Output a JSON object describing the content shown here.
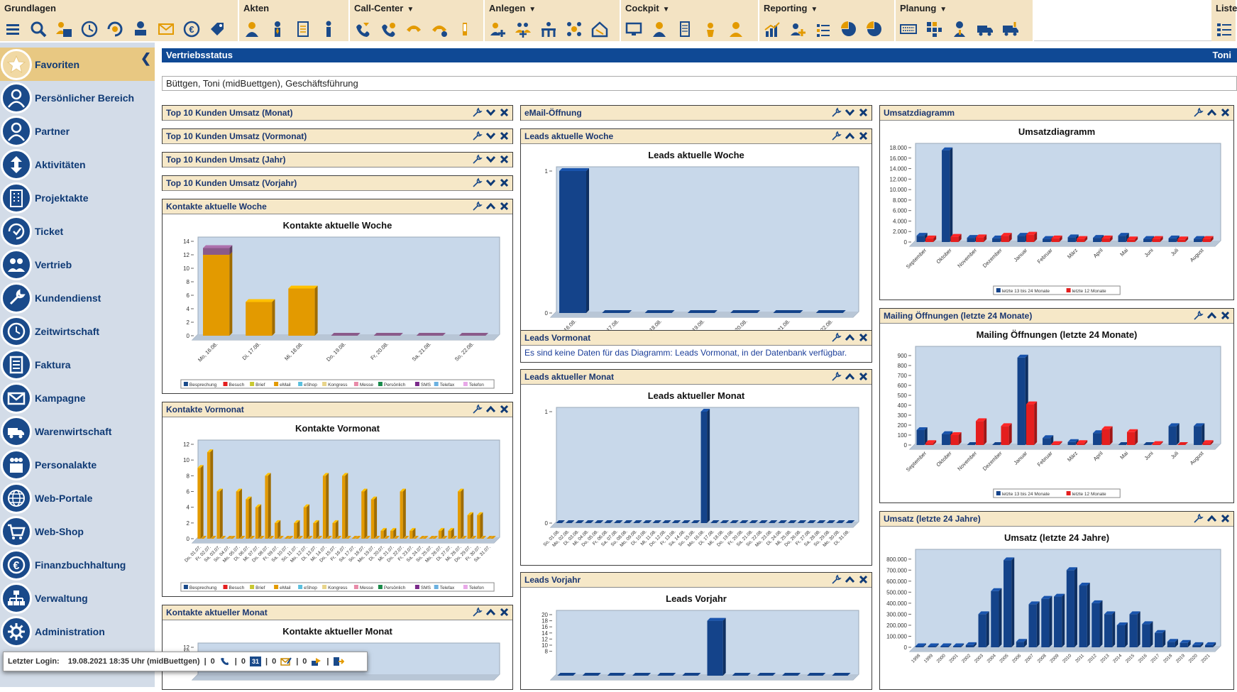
{
  "toolbar": {
    "groups": [
      {
        "title": "Grundlagen",
        "has_menu": false,
        "icons": [
          "menu-icon",
          "search-icon",
          "calendar-user-icon",
          "clock-icon",
          "refresh-icon",
          "user-desk-icon",
          "mail-icon",
          "euro-icon",
          "tag-icon"
        ]
      },
      {
        "title": "Akten",
        "has_menu": false,
        "icons": [
          "person-icon",
          "person-tie-icon",
          "document-icon",
          "person-standing-icon"
        ]
      },
      {
        "title": "Call-Center",
        "has_menu": true,
        "icons": [
          "phone-in-icon",
          "phone-out-icon",
          "phone-ring-icon",
          "phone-callback-icon",
          "phone-hand-icon"
        ]
      },
      {
        "title": "Anlegen",
        "has_menu": true,
        "icons": [
          "add-person-icon",
          "add-group-icon",
          "add-org-icon",
          "add-network-icon",
          "add-house-icon"
        ]
      },
      {
        "title": "Cockpit",
        "has_menu": true,
        "icons": [
          "monitor-icon",
          "person-cockpit-icon",
          "document-cockpit-icon",
          "hand-money-icon",
          "person-gold-icon"
        ]
      },
      {
        "title": "Reporting",
        "has_menu": true,
        "icons": [
          "bar-report-icon",
          "add-report-icon",
          "list-report-icon",
          "pie-add-icon",
          "pie-report-icon"
        ]
      },
      {
        "title": "Planung",
        "has_menu": true,
        "icons": [
          "keyboard-icon",
          "grid-icon",
          "person-alert-icon",
          "truck-icon",
          "truck-out-icon"
        ]
      },
      {
        "title": "Liste",
        "has_menu": false,
        "icons": [
          "list-icon"
        ]
      }
    ]
  },
  "sidebar": {
    "items": [
      {
        "label": "Favoriten",
        "icon": "star-icon",
        "active": true
      },
      {
        "label": "Persönlicher Bereich",
        "icon": "person-icon",
        "active": false
      },
      {
        "label": "Partner",
        "icon": "person-icon",
        "active": false
      },
      {
        "label": "Aktivitäten",
        "icon": "arrows-icon",
        "active": false
      },
      {
        "label": "Projektakte",
        "icon": "building-icon",
        "active": false
      },
      {
        "label": "Ticket",
        "icon": "ticket-icon",
        "active": false
      },
      {
        "label": "Vertrieb",
        "icon": "group-icon",
        "active": false
      },
      {
        "label": "Kundendienst",
        "icon": "wrench-icon",
        "active": false
      },
      {
        "label": "Zeitwirtschaft",
        "icon": "clock-icon",
        "active": false
      },
      {
        "label": "Faktura",
        "icon": "invoice-icon",
        "active": false
      },
      {
        "label": "Kampagne",
        "icon": "mail-icon",
        "active": false
      },
      {
        "label": "Warenwirtschaft",
        "icon": "truck-icon",
        "active": false
      },
      {
        "label": "Personalakte",
        "icon": "people-icon",
        "active": false
      },
      {
        "label": "Web-Portale",
        "icon": "globe-icon",
        "active": false
      },
      {
        "label": "Web-Shop",
        "icon": "cart-icon",
        "active": false
      },
      {
        "label": "Finanzbuchhaltung",
        "icon": "euro-icon",
        "active": false
      },
      {
        "label": "Verwaltung",
        "icon": "org-icon",
        "active": false
      },
      {
        "label": "Administration",
        "icon": "gear-icon",
        "active": false
      }
    ]
  },
  "page": {
    "title": "Vertriebsstatus",
    "user": "Toni",
    "user_line": "Büttgen, Toni (midBuettgen), Geschäftsführung"
  },
  "panels": {
    "top10_monat": {
      "title": "Top 10 Kunden Umsatz (Monat)",
      "collapsed": true
    },
    "top10_vormonat": {
      "title": "Top 10 Kunden Umsatz (Vormonat)",
      "collapsed": true
    },
    "top10_jahr": {
      "title": "Top 10 Kunden Umsatz (Jahr)",
      "collapsed": true
    },
    "top10_vorjahr": {
      "title": "Top 10 Kunden Umsatz (Vorjahr)",
      "collapsed": true
    },
    "kontakte_woche": {
      "title": "Kontakte aktuelle Woche",
      "collapsed": false
    },
    "kontakte_vormonat": {
      "title": "Kontakte Vormonat",
      "collapsed": false
    },
    "kontakte_monat": {
      "title": "Kontakte aktueller Monat",
      "collapsed": false
    },
    "email_oeffnung": {
      "title": "eMail-Öffnung",
      "collapsed": true
    },
    "leads_woche": {
      "title": "Leads aktuelle Woche",
      "collapsed": false
    },
    "leads_vormonat": {
      "title": "Leads Vormonat",
      "collapsed": false,
      "message": "Es sind keine Daten für das Diagramm: Leads Vormonat, in der Datenbank verfügbar."
    },
    "leads_monat": {
      "title": "Leads aktueller Monat",
      "collapsed": false
    },
    "leads_vorjahr": {
      "title": "Leads Vorjahr",
      "collapsed": false
    },
    "umsatzdiagramm": {
      "title": "Umsatzdiagramm",
      "collapsed": false
    },
    "mailing": {
      "title": "Mailing Öffnungen (letzte 24 Monate)",
      "collapsed": false
    },
    "umsatz24": {
      "title": "Umsatz (letzte 24 Jahre)",
      "collapsed": false
    }
  },
  "last_login": {
    "label": "Letzter Login:",
    "value": "19.08.2021 18:35 Uhr (midBuettgen)",
    "counts": [
      "0",
      "0",
      "0",
      "0"
    ],
    "calendar_day": "31"
  },
  "colors": {
    "brand_blue": "#0f4995",
    "panel_header": "#f6e8c8",
    "sidebar_bg": "#d3dce8",
    "bar_orange": "#e39a00",
    "bar_purple": "#8a5a8a",
    "bar_blue": "#14438a",
    "bar_red": "#e41e1e"
  },
  "chart_data": [
    {
      "id": "kontakte_woche",
      "type": "bar",
      "title": "Kontakte aktuelle Woche",
      "categories": [
        "Mo, 16.08.",
        "Di, 17.08.",
        "Mi, 18.08.",
        "Do, 19.08.",
        "Fr, 20.08.",
        "Sa, 21.08.",
        "So, 22.08."
      ],
      "series": [
        {
          "name": "Besprechung",
          "values": [
            0,
            0,
            0,
            0,
            0,
            0,
            0
          ]
        },
        {
          "name": "Besuch",
          "values": [
            0,
            0,
            0,
            0,
            0,
            0,
            0
          ]
        },
        {
          "name": "Brief",
          "values": [
            0,
            0,
            0,
            0,
            0,
            0,
            0
          ]
        },
        {
          "name": "eMail",
          "values": [
            12,
            5,
            7,
            0,
            0,
            0,
            0
          ]
        },
        {
          "name": "eShop",
          "values": [
            0,
            0,
            0,
            0,
            0,
            0,
            0
          ]
        },
        {
          "name": "Kongress",
          "values": [
            0,
            0,
            0,
            0,
            0,
            0,
            0
          ]
        },
        {
          "name": "Messe",
          "values": [
            0,
            0,
            0,
            0,
            0,
            0,
            0
          ]
        },
        {
          "name": "Persönlich",
          "values": [
            0,
            0,
            0,
            0,
            0,
            0,
            0
          ]
        },
        {
          "name": "SMS",
          "values": [
            0,
            0,
            0,
            0,
            0,
            0,
            0
          ]
        },
        {
          "name": "Telefax",
          "values": [
            0,
            0,
            0,
            0,
            0,
            0,
            0
          ]
        },
        {
          "name": "Telefon",
          "values": [
            1,
            0,
            0,
            0,
            0,
            0,
            0
          ]
        }
      ],
      "yticks": [
        "0",
        "2",
        "4",
        "6",
        "8",
        "10",
        "12",
        "14"
      ],
      "ylim": [
        0,
        14
      ],
      "stacked": true
    },
    {
      "id": "kontakte_vormonat",
      "type": "bar",
      "title": "Kontakte Vormonat",
      "categories": [
        "Do, 01.07.",
        "Fr, 02.07.",
        "Sa, 03.07.",
        "So, 04.07.",
        "Mo, 05.07.",
        "Di, 06.07.",
        "Mi, 07.07.",
        "Do, 08.07.",
        "Fr, 09.07.",
        "Sa, 10.07.",
        "So, 11.07.",
        "Mo, 12.07.",
        "Di, 13.07.",
        "Mi, 14.07.",
        "Do, 15.07.",
        "Fr, 16.07.",
        "Sa, 17.07.",
        "So, 18.07.",
        "Mo, 19.07.",
        "Di, 20.07.",
        "Mi, 21.07.",
        "Do, 22.07.",
        "Fr, 23.07.",
        "Sa, 24.07.",
        "So, 25.07.",
        "Mo, 26.07.",
        "Di, 27.07.",
        "Mi, 28.07.",
        "Do, 29.07.",
        "Fr, 30.07.",
        "Sa, 31.07."
      ],
      "series": [
        {
          "name": "eMail",
          "values": [
            9,
            11,
            6,
            0,
            6,
            5,
            4,
            8,
            2,
            0,
            2,
            4,
            2,
            8,
            2,
            8,
            0,
            6,
            5,
            1,
            1,
            6,
            1,
            0,
            0,
            1,
            1,
            6,
            3,
            3,
            0
          ]
        },
        {
          "name": "Telefon",
          "values": [
            0,
            0,
            0,
            0,
            0,
            0,
            0,
            0,
            0,
            0,
            0,
            0,
            0,
            0,
            0,
            0,
            0,
            0,
            0,
            0,
            0,
            0,
            0,
            0,
            0,
            0,
            0,
            0,
            0,
            0,
            0
          ]
        }
      ],
      "legend": [
        "Besprechung",
        "Besuch",
        "Brief",
        "eMail",
        "eShop",
        "Kongress",
        "Messe",
        "Persönlich",
        "SMS",
        "Telefax",
        "Telefon"
      ],
      "yticks": [
        "0",
        "2",
        "4",
        "6",
        "8",
        "10",
        "12"
      ],
      "ylim": [
        0,
        12
      ]
    },
    {
      "id": "kontakte_monat",
      "type": "bar",
      "title": "Kontakte aktueller Monat",
      "yticks": [
        "10",
        "12"
      ],
      "ylim": [
        0,
        12
      ]
    },
    {
      "id": "leads_woche",
      "type": "bar",
      "title": "Leads aktuelle Woche",
      "categories": [
        "Mo, 16.08.",
        "Di, 17.08.",
        "Mi, 18.08.",
        "Do, 19.08.",
        "Fr, 20.08.",
        "Sa, 21.08.",
        "So, 22.08."
      ],
      "values": [
        1,
        0,
        0,
        0,
        0,
        0,
        0
      ],
      "yticks": [
        "0",
        "1"
      ],
      "ylim": [
        0,
        1
      ]
    },
    {
      "id": "leads_monat",
      "type": "bar",
      "title": "Leads aktueller Monat",
      "categories": [
        "So, 01.08.",
        "Mo, 02.08.",
        "Di, 03.08.",
        "Mi, 04.08.",
        "Do, 05.08.",
        "Fr, 06.08.",
        "Sa, 07.08.",
        "So, 08.08.",
        "Mo, 09.08.",
        "Di, 10.08.",
        "Mi, 11.08.",
        "Do, 12.08.",
        "Fr, 13.08.",
        "Sa, 14.08.",
        "So, 15.08.",
        "Mo, 16.08.",
        "Di, 17.08.",
        "Mi, 18.08.",
        "Do, 19.08.",
        "Fr, 20.08.",
        "Sa, 21.08.",
        "So, 22.08.",
        "Mo, 23.08.",
        "Di, 24.08.",
        "Mi, 25.08.",
        "Do, 26.08.",
        "Fr, 27.08.",
        "Sa, 28.08.",
        "So, 29.08.",
        "Mo, 30.08.",
        "Di, 31.08."
      ],
      "values": [
        0,
        0,
        0,
        0,
        0,
        0,
        0,
        0,
        0,
        0,
        0,
        0,
        0,
        0,
        0,
        1,
        0,
        0,
        0,
        0,
        0,
        0,
        0,
        0,
        0,
        0,
        0,
        0,
        0,
        0,
        0
      ],
      "yticks": [
        "0",
        "1"
      ],
      "ylim": [
        0,
        1
      ]
    },
    {
      "id": "leads_vorjahr",
      "type": "bar",
      "title": "Leads Vorjahr",
      "values": [
        0,
        0,
        0,
        0,
        0,
        0,
        18,
        0,
        0,
        0,
        0,
        0
      ],
      "yticks": [
        "8",
        "10",
        "12",
        "14",
        "16",
        "18",
        "20"
      ],
      "ylim": [
        0,
        20
      ]
    },
    {
      "id": "umsatzdiagramm",
      "type": "bar",
      "title": "Umsatzdiagramm",
      "categories": [
        "September",
        "Oktober",
        "November",
        "Dezember",
        "Januar",
        "Februar",
        "März",
        "April",
        "Mai",
        "Juni",
        "Juli",
        "August"
      ],
      "series": [
        {
          "name": "letzte 13 bis 24 Monate",
          "values": [
            1200,
            17500,
            800,
            700,
            1200,
            600,
            900,
            800,
            1200,
            600,
            700,
            600
          ]
        },
        {
          "name": "letzte 12 Monate",
          "values": [
            700,
            1000,
            900,
            1200,
            1400,
            700,
            600,
            700,
            500,
            600,
            500,
            600
          ]
        }
      ],
      "yticks": [
        "0",
        "2.000",
        "4.000",
        "6.000",
        "8.000",
        "10.000",
        "12.000",
        "14.000",
        "16.000",
        "18.000"
      ],
      "ylim": [
        0,
        18000
      ]
    },
    {
      "id": "mailing",
      "type": "bar",
      "title": "Mailing Öffnungen (letzte 24 Monate)",
      "categories": [
        "September",
        "Oktober",
        "November",
        "Dezember",
        "Januar",
        "Februar",
        "März",
        "April",
        "Mai",
        "Juni",
        "Juli",
        "August"
      ],
      "series": [
        {
          "name": "letzte 13 bis 24 Monate",
          "values": [
            150,
            110,
            0,
            0,
            880,
            70,
            30,
            120,
            0,
            0,
            190,
            190
          ]
        },
        {
          "name": "letzte 12 Monate",
          "values": [
            20,
            100,
            240,
            190,
            410,
            10,
            20,
            160,
            130,
            10,
            0,
            20
          ]
        }
      ],
      "yticks": [
        "0",
        "100",
        "200",
        "300",
        "400",
        "500",
        "600",
        "700",
        "800",
        "900"
      ],
      "ylim": [
        0,
        950
      ]
    },
    {
      "id": "umsatz24",
      "type": "bar",
      "title": "Umsatz (letzte 24 Jahre)",
      "categories": [
        "1998",
        "1999",
        "2000",
        "2001",
        "2002",
        "2003",
        "2004",
        "2005",
        "2006",
        "2007",
        "2008",
        "2009",
        "2010",
        "2011",
        "2012",
        "2013",
        "2014",
        "2015",
        "2016",
        "2017",
        "2018",
        "2019",
        "2020",
        "2021"
      ],
      "values": [
        10000,
        10000,
        10000,
        10000,
        20000,
        300000,
        510000,
        790000,
        50000,
        390000,
        440000,
        460000,
        700000,
        560000,
        400000,
        300000,
        200000,
        300000,
        210000,
        130000,
        50000,
        40000,
        20000,
        20000
      ],
      "yticks": [
        "0",
        "100.000",
        "200.000",
        "300.000",
        "400.000",
        "500.000",
        "600.000",
        "700.000",
        "800.000"
      ],
      "ylim": [
        0,
        850000
      ]
    }
  ]
}
